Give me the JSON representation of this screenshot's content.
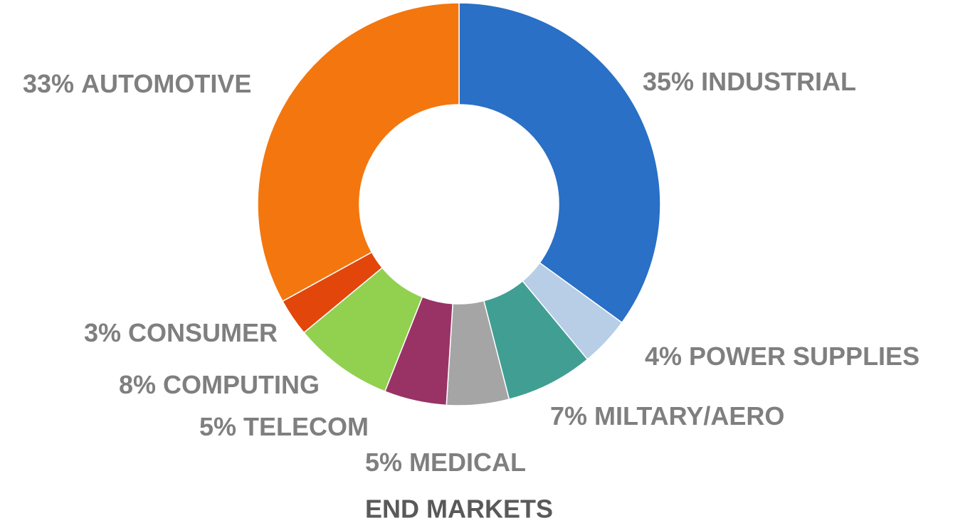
{
  "chart_data": {
    "type": "donut",
    "title": "END MARKETS",
    "categories": [
      "INDUSTRIAL",
      "POWER SUPPLIES",
      "MILTARY/AERO",
      "MEDICAL",
      "TELECOM",
      "COMPUTING",
      "CONSUMER",
      "AUTOMOTIVE"
    ],
    "values": [
      35,
      4,
      7,
      5,
      5,
      8,
      3,
      33
    ],
    "value_labels": [
      "35%",
      "4%",
      "7%",
      "5%",
      "5%",
      "8%",
      "3%",
      "33%"
    ],
    "colors": [
      "#2970c6",
      "#b8cde6",
      "#419e92",
      "#a5a5a5",
      "#993366",
      "#92d050",
      "#e2460a",
      "#f4760e"
    ]
  }
}
